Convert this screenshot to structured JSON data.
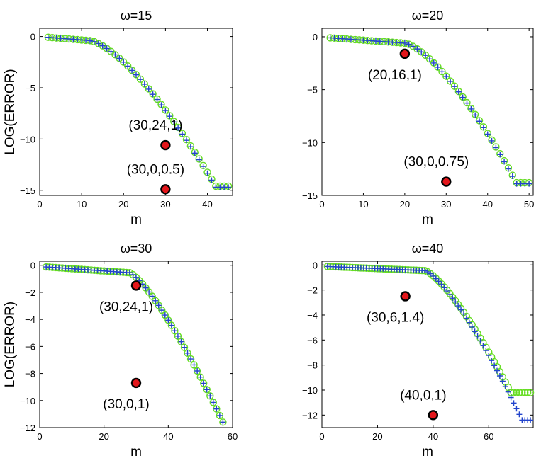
{
  "chart_data": [
    {
      "type": "scatter",
      "title": "ω=15",
      "xlabel": "m",
      "ylabel": "LOG(ERROR)",
      "xlim": [
        0,
        46
      ],
      "ylim": [
        -15.5,
        0.8
      ],
      "xticks": [
        0,
        10,
        20,
        30,
        40
      ],
      "yticks": [
        0,
        -5,
        -10,
        -15
      ],
      "series": [
        {
          "name": "circles",
          "marker": "o",
          "color": "#66dd22",
          "plateau": {
            "x0": 2,
            "x1": 12,
            "y0": -0.08,
            "y1": -0.4
          },
          "decay": {
            "x0": 12,
            "y0": -0.4,
            "x1": 42,
            "y1": -14.6,
            "p": 1.45
          },
          "floor": {
            "x0": 42,
            "x1": 45,
            "y": -14.6
          },
          "step": 1
        },
        {
          "name": "crosses",
          "marker": "+",
          "color": "#2244cc",
          "plateau": {
            "x0": 2,
            "x1": 12,
            "y0": -0.08,
            "y1": -0.4
          },
          "decay": {
            "x0": 12,
            "y0": -0.4,
            "x1": 42,
            "y1": -14.7,
            "p": 1.45
          },
          "floor": {
            "x0": 42,
            "x1": 45,
            "y": -14.7
          },
          "step": 1
        }
      ],
      "points": [
        {
          "x": 30,
          "y": -10.6,
          "label": "(30,24,1)",
          "label_pos": "upper-left"
        },
        {
          "x": 30,
          "y": -14.9,
          "label": "(30,0,0.5)",
          "label_pos": "upper-left"
        }
      ]
    },
    {
      "type": "scatter",
      "title": "ω=20",
      "xlabel": "m",
      "ylabel": "",
      "xlim": [
        0,
        51
      ],
      "ylim": [
        -15,
        0.8
      ],
      "xticks": [
        0,
        10,
        20,
        30,
        40,
        50
      ],
      "yticks": [
        0,
        -5,
        -10,
        -15
      ],
      "series": [
        {
          "name": "circles",
          "marker": "o",
          "color": "#66dd22",
          "plateau": {
            "x0": 2,
            "x1": 20,
            "y0": -0.1,
            "y1": -0.6
          },
          "decay": {
            "x0": 20,
            "y0": -0.6,
            "x1": 47,
            "y1": -13.8,
            "p": 1.45
          },
          "floor": {
            "x0": 47,
            "x1": 50,
            "y": -13.8
          },
          "step": 1
        },
        {
          "name": "crosses",
          "marker": "+",
          "color": "#2244cc",
          "plateau": {
            "x0": 2,
            "x1": 20,
            "y0": -0.1,
            "y1": -0.6
          },
          "decay": {
            "x0": 20,
            "y0": -0.6,
            "x1": 47,
            "y1": -13.9,
            "p": 1.45
          },
          "floor": {
            "x0": 47,
            "x1": 50,
            "y": -13.9
          },
          "step": 1
        }
      ],
      "points": [
        {
          "x": 20,
          "y": -1.6,
          "label": "(20,16,1)",
          "label_pos": "lower-left"
        },
        {
          "x": 30,
          "y": -13.7,
          "label": "(30,0,0.75)",
          "label_pos": "upper-left"
        }
      ]
    },
    {
      "type": "scatter",
      "title": "ω=30",
      "xlabel": "m",
      "ylabel": "LOG(ERROR)",
      "xlim": [
        0,
        60
      ],
      "ylim": [
        -12,
        0.3
      ],
      "xticks": [
        0,
        20,
        40,
        60
      ],
      "yticks": [
        0,
        -2,
        -4,
        -6,
        -8,
        -10,
        -12
      ],
      "series": [
        {
          "name": "circles",
          "marker": "o",
          "color": "#66dd22",
          "plateau": {
            "x0": 2,
            "x1": 28,
            "y0": -0.12,
            "y1": -0.55
          },
          "decay": {
            "x0": 28,
            "y0": -0.55,
            "x1": 57,
            "y1": -11.6,
            "p": 1.3
          },
          "floor": null,
          "step": 1
        },
        {
          "name": "crosses",
          "marker": "+",
          "color": "#2244cc",
          "plateau": {
            "x0": 2,
            "x1": 28,
            "y0": -0.12,
            "y1": -0.55
          },
          "decay": {
            "x0": 28,
            "y0": -0.55,
            "x1": 57,
            "y1": -11.6,
            "p": 1.3
          },
          "floor": null,
          "step": 1
        }
      ],
      "points": [
        {
          "x": 30,
          "y": -1.5,
          "label": "(30,24,1)",
          "label_pos": "lower-left"
        },
        {
          "x": 30,
          "y": -8.7,
          "label": "(30,0,1)",
          "label_pos": "lower-left"
        }
      ]
    },
    {
      "type": "scatter",
      "title": "ω=40",
      "xlabel": "m",
      "ylabel": "",
      "xlim": [
        0,
        76
      ],
      "ylim": [
        -13,
        0.3
      ],
      "xticks": [
        0,
        20,
        40,
        60
      ],
      "yticks": [
        0,
        -2,
        -4,
        -6,
        -8,
        -10,
        -12
      ],
      "series": [
        {
          "name": "circles",
          "marker": "o",
          "color": "#66dd22",
          "plateau": {
            "x0": 2,
            "x1": 37,
            "y0": -0.12,
            "y1": -0.45
          },
          "decay": {
            "x0": 37,
            "y0": -0.45,
            "x1": 68,
            "y1": -10.2,
            "p": 1.35
          },
          "floor": {
            "x0": 68,
            "x1": 75,
            "y": -10.2
          },
          "step": 1
        },
        {
          "name": "crosses",
          "marker": "+",
          "color": "#2244cc",
          "plateau": {
            "x0": 2,
            "x1": 37,
            "y0": -0.12,
            "y1": -0.45
          },
          "decay": {
            "x0": 37,
            "y0": -0.45,
            "x1": 72,
            "y1": -12.4,
            "p": 1.35
          },
          "floor": {
            "x0": 72,
            "x1": 75,
            "y": -12.4
          },
          "step": 1
        }
      ],
      "points": [
        {
          "x": 30,
          "y": -2.5,
          "label": "(30,6,1.4)",
          "label_pos": "lower-left"
        },
        {
          "x": 40,
          "y": -12.0,
          "label": "(40,0,1)",
          "label_pos": "upper-left"
        }
      ]
    }
  ]
}
